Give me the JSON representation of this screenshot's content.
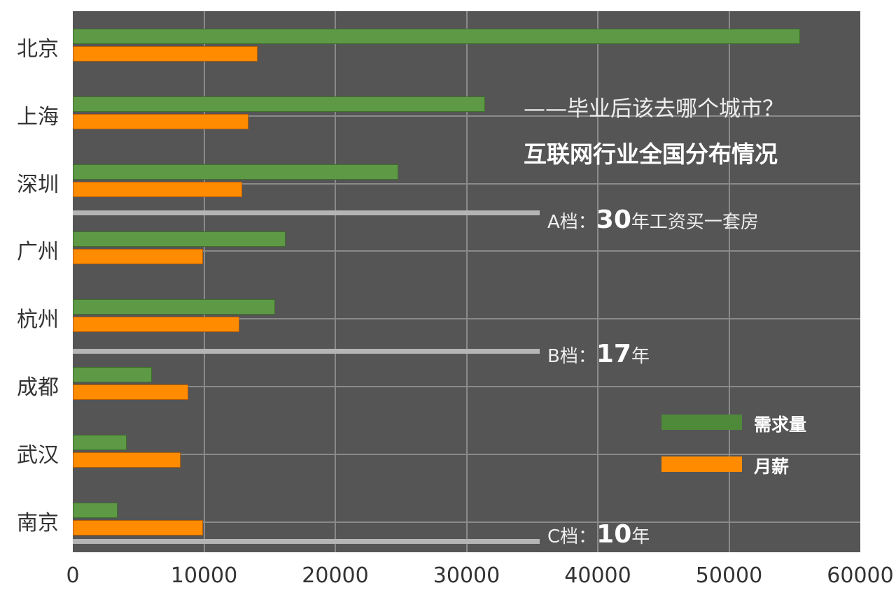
{
  "chart_data": {
    "type": "bar",
    "orientation": "horizontal",
    "title": "互联网行业全国分布情况",
    "subtitle": "——毕业后该去哪个城市？",
    "categories": [
      "北京",
      "上海",
      "深圳",
      "广州",
      "杭州",
      "成都",
      "武汉",
      "南京"
    ],
    "series": [
      {
        "name": "需求量",
        "color": "#5e9a45",
        "values": [
          55400,
          31400,
          24800,
          16200,
          15400,
          6000,
          4100,
          3400
        ]
      },
      {
        "name": "月薪",
        "color": "#ff8c00",
        "values": [
          14100,
          13400,
          12900,
          9900,
          12700,
          8800,
          8200,
          9900
        ]
      }
    ],
    "xlim": [
      0,
      60000
    ],
    "xticks": [
      "0",
      "10000",
      "20000",
      "30000",
      "40000",
      "50000",
      "60000"
    ],
    "xlabel": "",
    "ylabel": "",
    "grid": true,
    "legend_position": "lower right inside",
    "annotations": [
      {
        "label": "A档：",
        "big": "30",
        "rest": "年工资买一套房"
      },
      {
        "label": "B档：",
        "big": "17",
        "rest": "年"
      },
      {
        "label": "C档：",
        "big": "10",
        "rest": "年"
      }
    ]
  },
  "legend": {
    "demand": "需求量",
    "salary": "月薪"
  }
}
